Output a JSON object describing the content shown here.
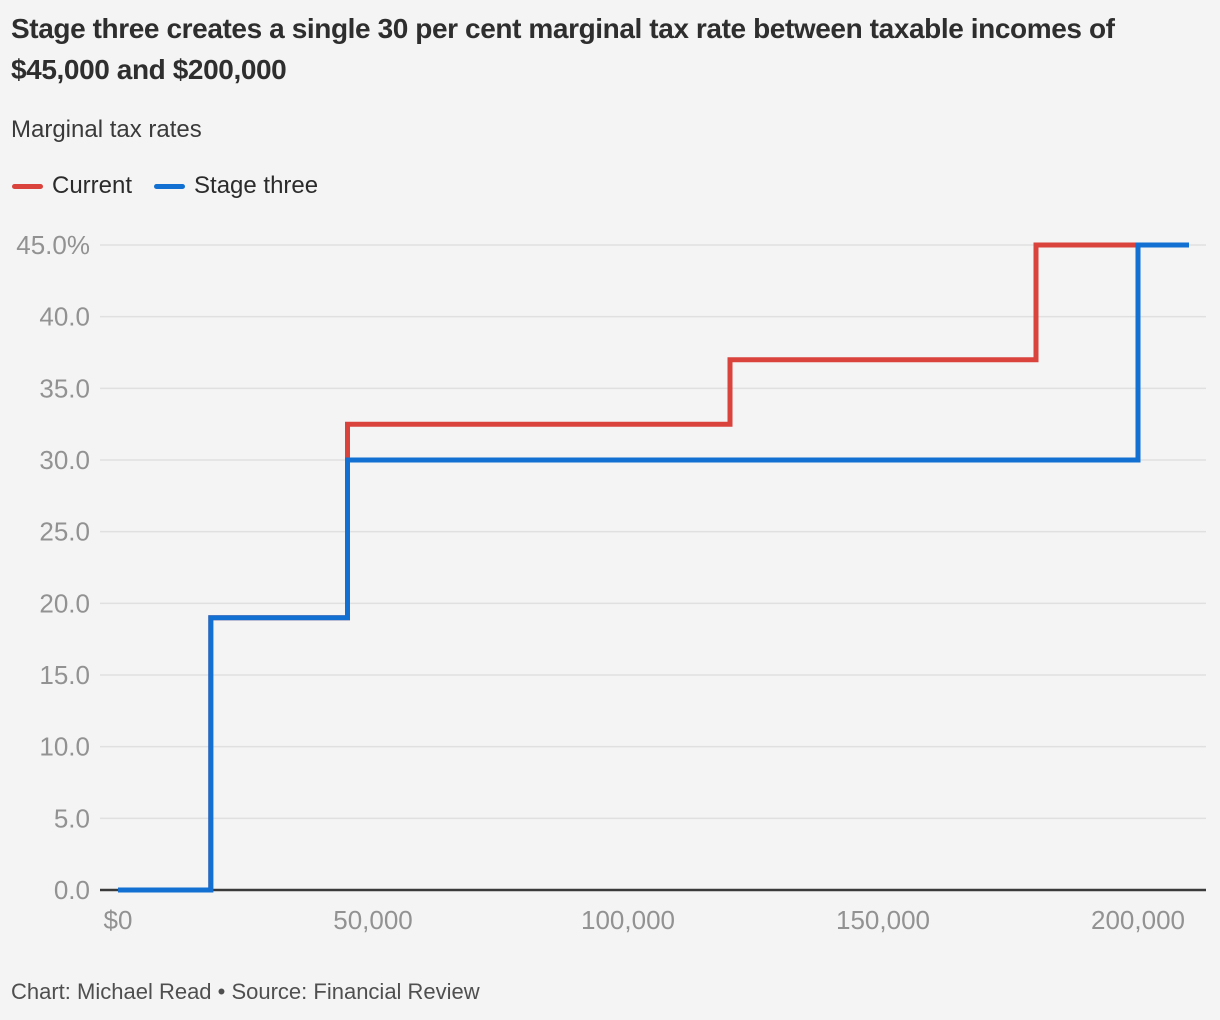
{
  "chart_data": {
    "type": "line",
    "step": true,
    "title": "Stage three creates a single 30 per cent marginal tax rate between taxable incomes of $45,000 and $200,000",
    "subtitle": "Marginal tax rates",
    "attribution": "Chart: Michael Read • Source: Financial Review",
    "xlim": [
      0,
      210000
    ],
    "ylim": [
      0,
      45
    ],
    "grid": true,
    "legend_position": "top-left",
    "x_ticks": [
      {
        "value": 0,
        "label": "$0"
      },
      {
        "value": 50000,
        "label": "50,000"
      },
      {
        "value": 100000,
        "label": "100,000"
      },
      {
        "value": 150000,
        "label": "150,000"
      },
      {
        "value": 200000,
        "label": "200,000"
      }
    ],
    "y_ticks": [
      {
        "value": 45,
        "label": "45.0%"
      },
      {
        "value": 40,
        "label": "40.0"
      },
      {
        "value": 35,
        "label": "35.0"
      },
      {
        "value": 30,
        "label": "30.0"
      },
      {
        "value": 25,
        "label": "25.0"
      },
      {
        "value": 20,
        "label": "20.0"
      },
      {
        "value": 15,
        "label": "15.0"
      },
      {
        "value": 10,
        "label": "10.0"
      },
      {
        "value": 5,
        "label": "5.0"
      },
      {
        "value": 0,
        "label": "0.0"
      }
    ],
    "series": [
      {
        "name": "Current",
        "color": "#da423c",
        "points": [
          [
            0,
            0
          ],
          [
            18200,
            0
          ],
          [
            18200,
            19
          ],
          [
            45000,
            19
          ],
          [
            45000,
            32.5
          ],
          [
            120000,
            32.5
          ],
          [
            120000,
            37
          ],
          [
            180000,
            37
          ],
          [
            180000,
            45
          ],
          [
            210000,
            45
          ]
        ]
      },
      {
        "name": "Stage three",
        "color": "#1170d2",
        "points": [
          [
            0,
            0
          ],
          [
            18200,
            0
          ],
          [
            18200,
            19
          ],
          [
            45000,
            19
          ],
          [
            45000,
            30
          ],
          [
            200000,
            30
          ],
          [
            200000,
            45
          ],
          [
            210000,
            45
          ]
        ]
      }
    ]
  },
  "colors": {
    "background": "#f4f4f4",
    "grid": "#e0e0e0",
    "axis": "#3a3a3a",
    "tick_text": "#929292"
  }
}
